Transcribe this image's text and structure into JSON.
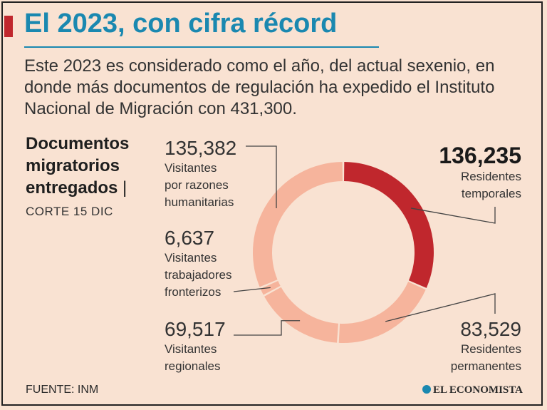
{
  "header": {
    "title": "El 2023, con cifra récord",
    "intro": "Este 2023 es considerado como el año, del actual sexenio, en donde más documentos de regulación ha expedido el Instituto Nacional de Migración con 431,300."
  },
  "side": {
    "title_lines": [
      "Documentos",
      "migratorios",
      "entregados"
    ],
    "pipe": "|",
    "date": "CORTE 15 DIC"
  },
  "footer": {
    "source": "FUENTE: INM",
    "logo": "EL ECONOMISTA"
  },
  "colors": {
    "accent": "#c0272d",
    "title": "#1a88b0",
    "segment_light": "#f6b49c",
    "background": "#f9e2d2"
  },
  "chart_data": {
    "type": "pie",
    "style": "donut",
    "total": 431300,
    "segments": [
      {
        "value": "136,235",
        "amount": 136235,
        "label_lines": [
          "Residentes",
          "temporales"
        ],
        "color": "#c0272d"
      },
      {
        "value": "83,529",
        "amount": 83529,
        "label_lines": [
          "Residentes",
          "permanentes"
        ],
        "color": "#f6b49c"
      },
      {
        "value": "69,517",
        "amount": 69517,
        "label_lines": [
          "Visitantes",
          "regionales"
        ],
        "color": "#f6b49c"
      },
      {
        "value": "6,637",
        "amount": 6637,
        "label_lines": [
          "Visitantes",
          "trabajadores",
          "fronterizos"
        ],
        "color": "#f6b49c"
      },
      {
        "value": "135,382",
        "amount": 135382,
        "label_lines": [
          "Visitantes",
          "por razones",
          "humanitarias"
        ],
        "color": "#f6b49c"
      }
    ]
  }
}
